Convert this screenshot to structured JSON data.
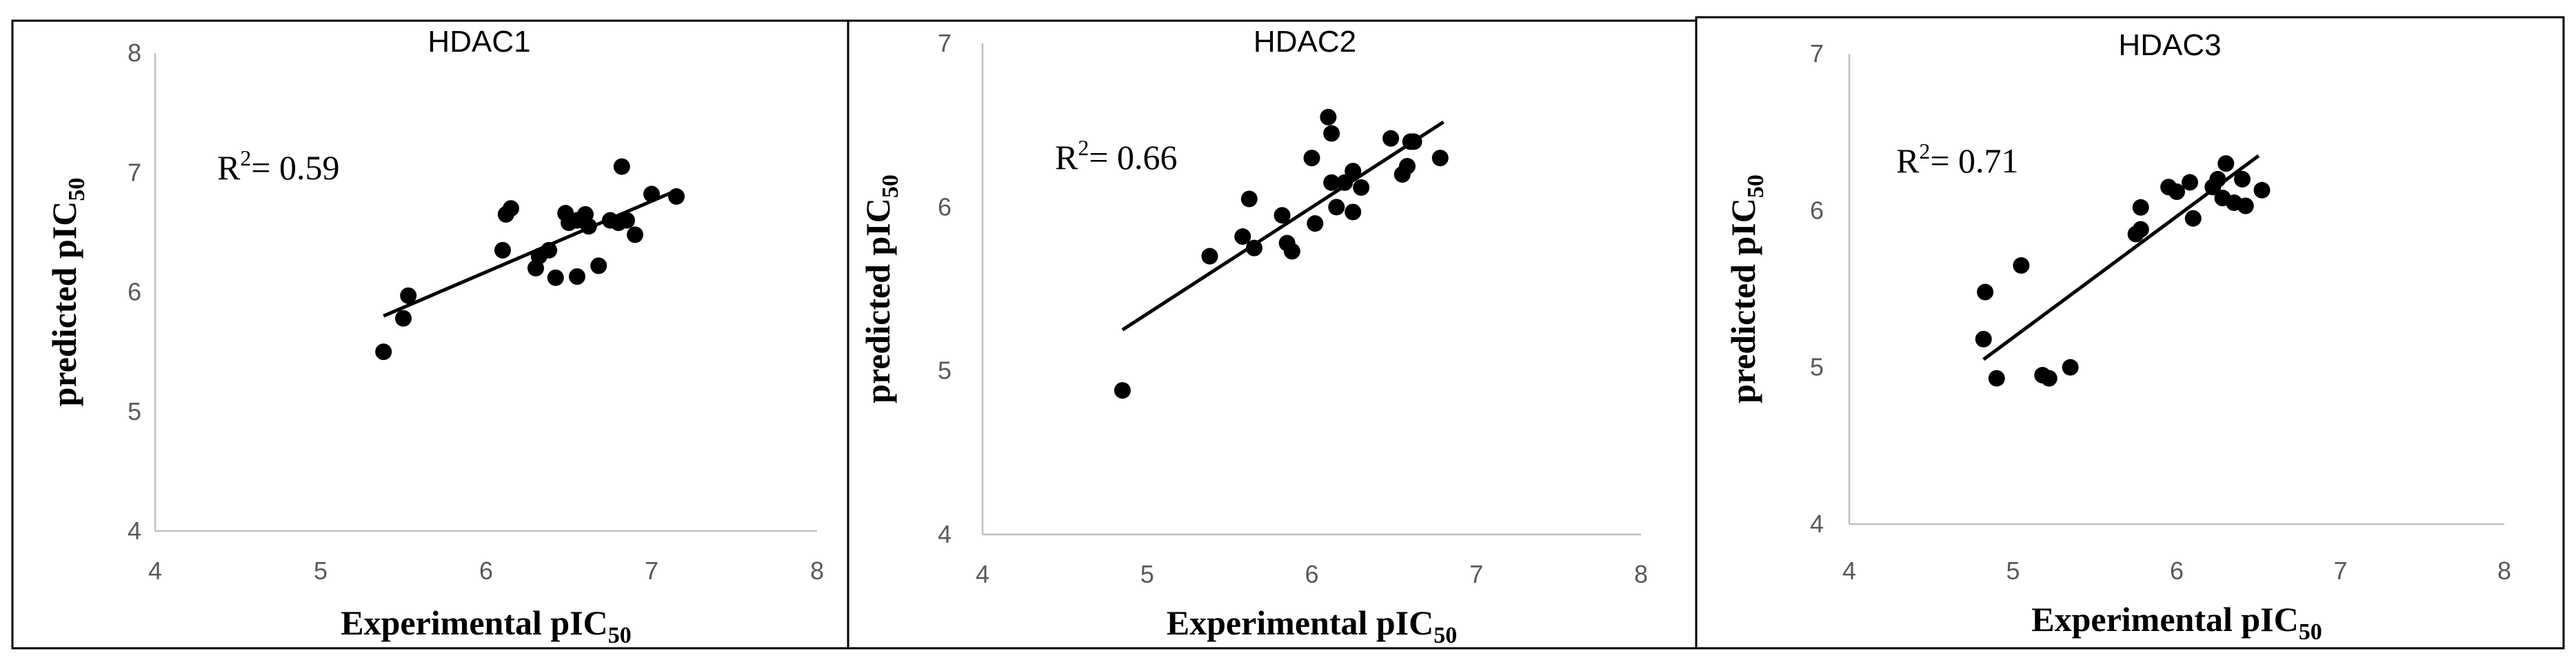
{
  "chart_data": [
    {
      "type": "scatter",
      "title": "HDAC1",
      "annotation": {
        "prefix": "R",
        "sup": "2",
        "suffix": "= 0.59"
      },
      "xlabel": {
        "main": "Experimental  pIC",
        "sub": "50"
      },
      "ylabel": {
        "main": "predicted  pIC",
        "sub": "50"
      },
      "xlim": [
        4,
        8
      ],
      "ylim": [
        4,
        8
      ],
      "xticks": [
        "4",
        "5",
        "6",
        "7",
        "8"
      ],
      "yticks": [
        "4",
        "5",
        "6",
        "7",
        "8"
      ],
      "x": [
        5.38,
        5.5,
        5.53,
        6.1,
        6.12,
        6.15,
        6.3,
        6.32,
        6.38,
        6.42,
        6.48,
        6.5,
        6.55,
        6.55,
        6.6,
        6.62,
        6.68,
        6.75,
        6.8,
        6.82,
        6.85,
        6.9,
        7.0,
        7.15
      ],
      "y": [
        5.5,
        5.78,
        5.97,
        6.35,
        6.65,
        6.7,
        6.2,
        6.3,
        6.35,
        6.12,
        6.66,
        6.58,
        6.13,
        6.6,
        6.65,
        6.55,
        6.22,
        6.6,
        6.58,
        7.05,
        6.6,
        6.48,
        6.82,
        6.8
      ],
      "trendline": {
        "x": [
          5.38,
          7.15
        ],
        "y": [
          5.8,
          6.85
        ]
      }
    },
    {
      "type": "scatter",
      "title": "HDAC2",
      "annotation": {
        "prefix": "R",
        "sup": "2",
        "suffix": "= 0.66"
      },
      "xlabel": {
        "main": "Experimental  pIC",
        "sub": "50"
      },
      "ylabel": {
        "main": "predicted  pIC",
        "sub": "50"
      },
      "xlim": [
        4,
        8
      ],
      "ylim": [
        4,
        7
      ],
      "xticks": [
        "4",
        "5",
        "6",
        "7",
        "8"
      ],
      "yticks": [
        "4",
        "5",
        "6",
        "7"
      ],
      "x": [
        4.85,
        5.38,
        5.58,
        5.62,
        5.65,
        5.82,
        5.85,
        5.88,
        6.0,
        6.02,
        6.1,
        6.12,
        6.12,
        6.15,
        6.2,
        6.25,
        6.25,
        6.3,
        6.48,
        6.55,
        6.58,
        6.6,
        6.62,
        6.78
      ],
      "y": [
        4.88,
        5.7,
        5.82,
        6.05,
        5.75,
        5.95,
        5.78,
        5.73,
        6.3,
        5.9,
        6.55,
        6.45,
        6.15,
        6.0,
        6.15,
        6.22,
        5.97,
        6.12,
        6.42,
        6.2,
        6.25,
        6.4,
        6.4,
        6.3
      ],
      "trendline": {
        "x": [
          4.85,
          6.8
        ],
        "y": [
          5.25,
          6.52
        ]
      }
    },
    {
      "type": "scatter",
      "title": "HDAC3",
      "annotation": {
        "prefix": "R",
        "sup": "2",
        "suffix": "= 0.71"
      },
      "xlabel": {
        "main": "Experimental  pIC",
        "sub": "50"
      },
      "ylabel": {
        "main": "predicted  pIC",
        "sub": "50"
      },
      "xlim": [
        4,
        8
      ],
      "ylim": [
        4,
        7
      ],
      "xticks": [
        "4",
        "5",
        "6",
        "7",
        "8"
      ],
      "yticks": [
        "4",
        "5",
        "6",
        "7"
      ],
      "x": [
        4.82,
        4.83,
        4.9,
        5.05,
        5.18,
        5.22,
        5.35,
        5.75,
        5.78,
        5.78,
        5.95,
        6.0,
        6.08,
        6.1,
        6.22,
        6.25,
        6.28,
        6.3,
        6.35,
        6.4,
        6.42,
        6.52
      ],
      "y": [
        5.18,
        5.48,
        4.93,
        5.65,
        4.95,
        4.93,
        5.0,
        5.85,
        6.02,
        5.88,
        6.15,
        6.12,
        6.18,
        5.95,
        6.15,
        6.2,
        6.08,
        6.3,
        6.05,
        6.2,
        6.03,
        6.13
      ],
      "trendline": {
        "x": [
          4.82,
          6.5
        ],
        "y": [
          5.05,
          6.35
        ]
      }
    }
  ]
}
